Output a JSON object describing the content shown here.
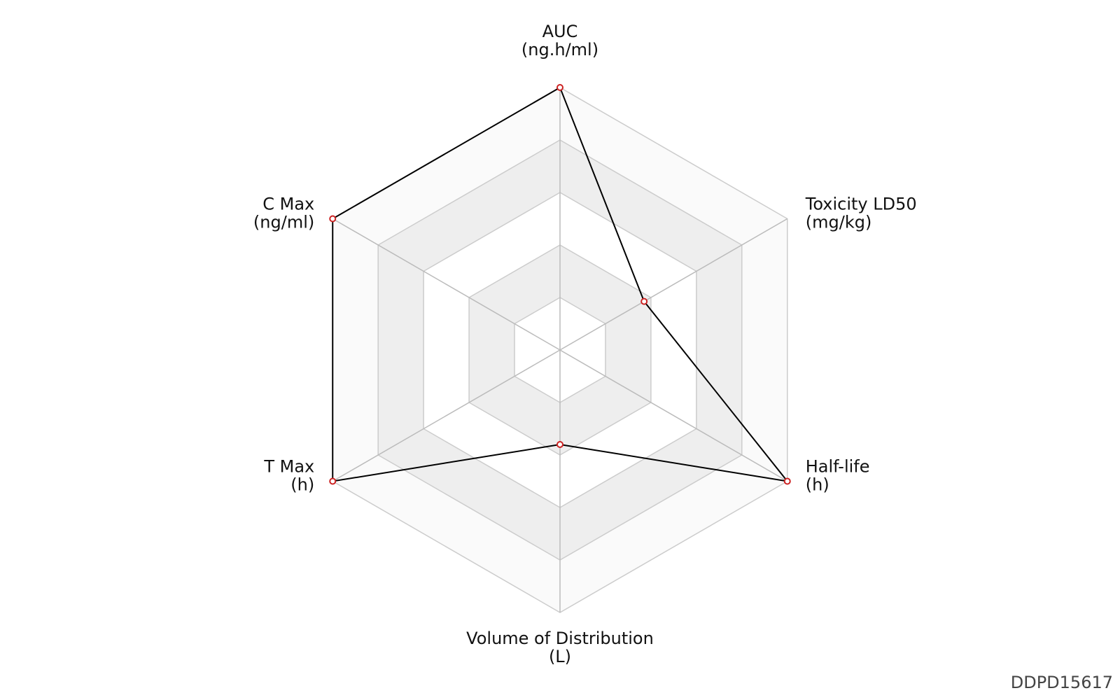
{
  "chart_data": {
    "type": "radar",
    "categories": [
      "AUC",
      "Toxicity LD50",
      "Half-life",
      "Volume of Distribution",
      "T Max",
      "C Max"
    ],
    "units": [
      "(ng.h/ml)",
      "(mg/kg)",
      "(h)",
      "(L)",
      "(h)",
      "(ng/ml)"
    ],
    "values": [
      1.0,
      0.37,
      1.0,
      0.36,
      1.0,
      1.0
    ],
    "ylim": [
      0,
      1
    ],
    "yticks": [
      0.2,
      0.4,
      0.6,
      0.8,
      1.0
    ],
    "line_color": "#000000",
    "marker_color": "#cc2222",
    "ring_fills": [
      "#ffffff",
      "#eeeeee",
      "#ffffff",
      "#eeeeee",
      "#fafafa"
    ],
    "watermark": "DDPD15617"
  }
}
